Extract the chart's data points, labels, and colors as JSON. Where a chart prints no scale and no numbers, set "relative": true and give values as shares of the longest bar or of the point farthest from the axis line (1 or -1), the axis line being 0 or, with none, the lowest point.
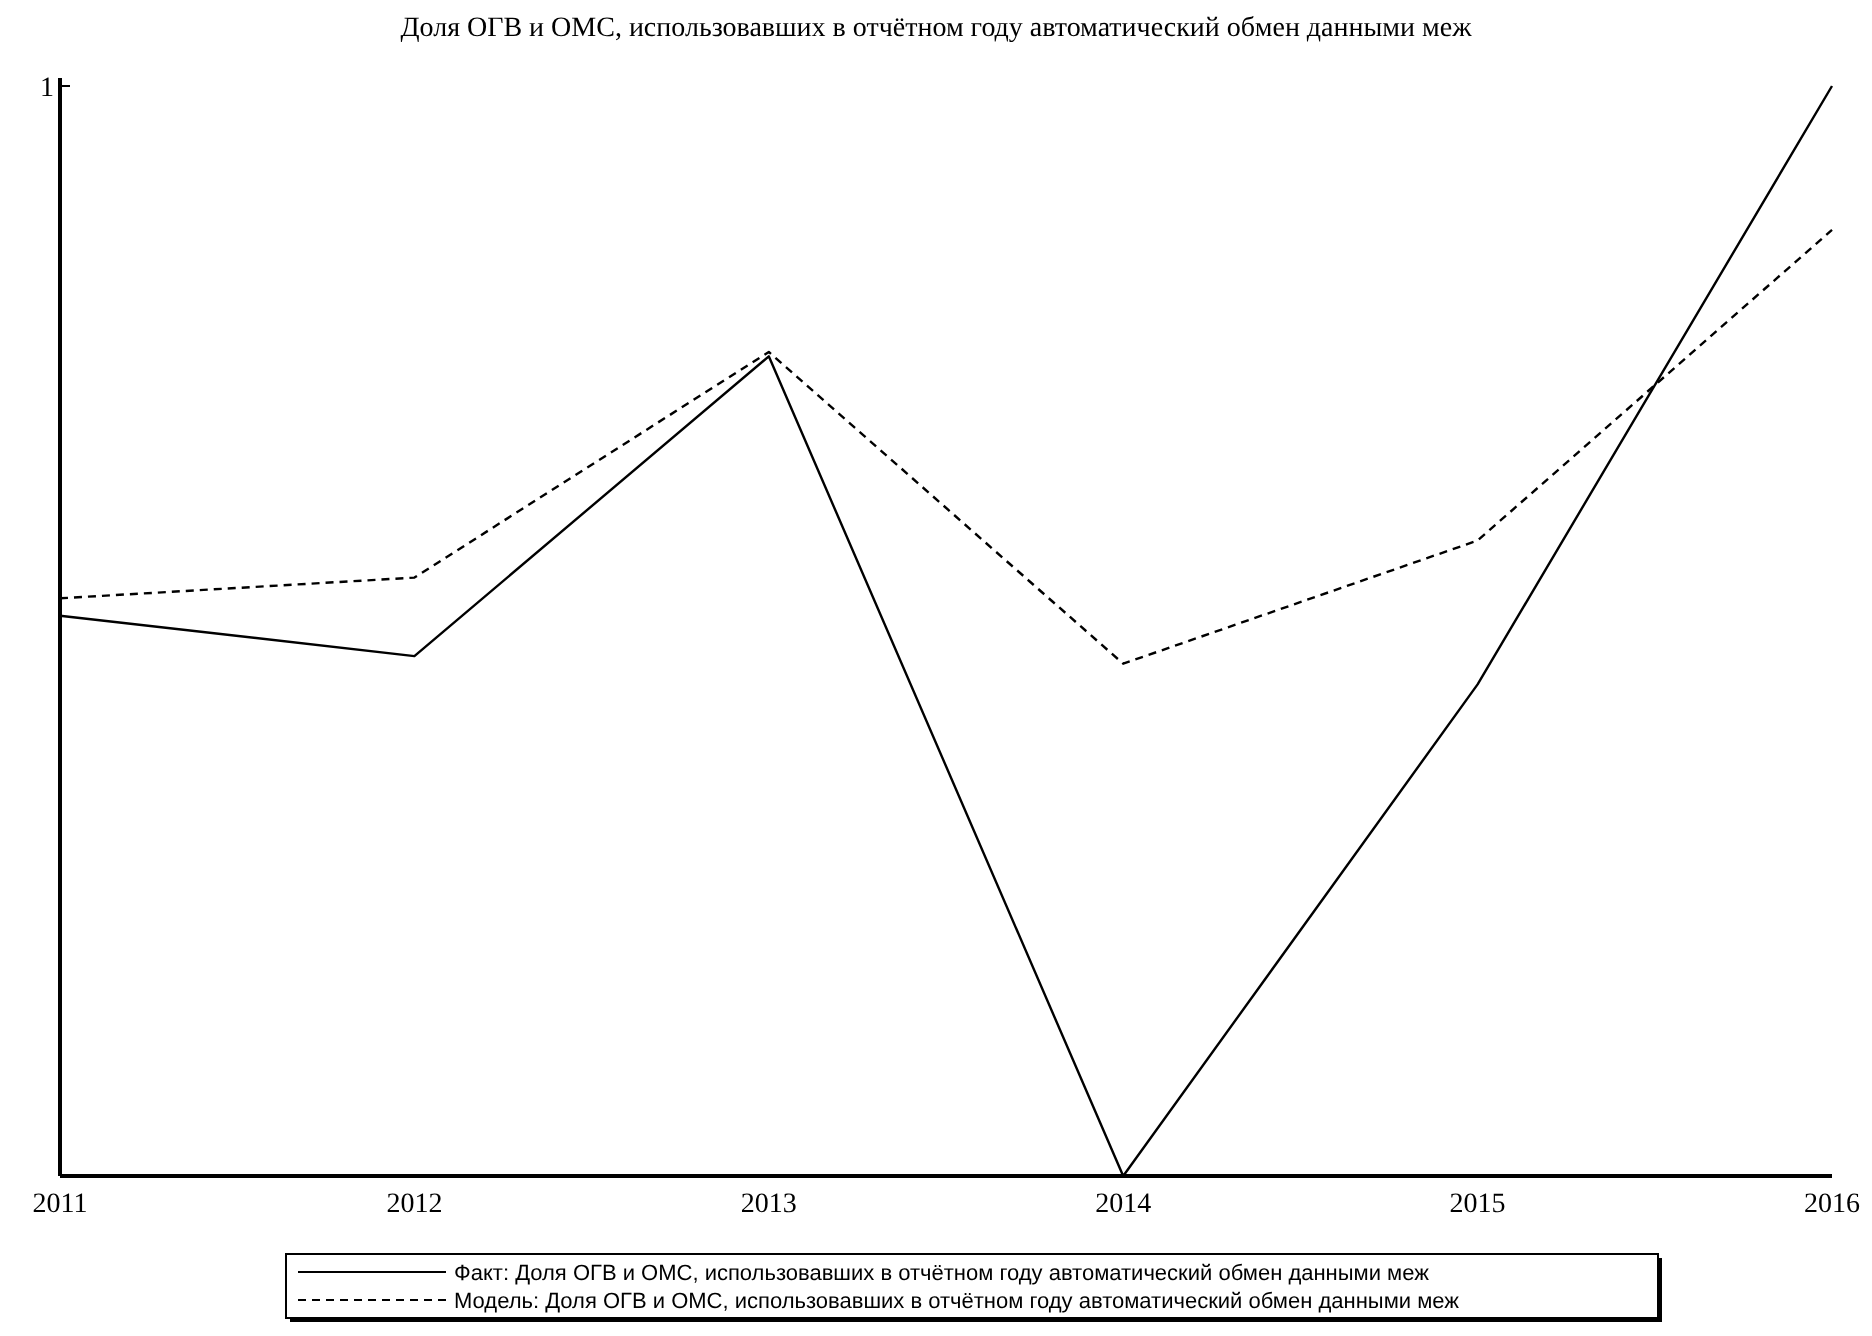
{
  "chart_data": {
    "type": "line",
    "title": "Доля ОГВ и ОМС, использовавших в отчётном году автоматический обмен данными меж",
    "x": [
      2011,
      2012,
      2013,
      2014,
      2015,
      2016
    ],
    "xlim": [
      2011,
      2016
    ],
    "xticks": [
      2011,
      2012,
      2013,
      2014,
      2015,
      2016
    ],
    "relative": true,
    "legend": "bottom",
    "annotations": [
      "1"
    ],
    "series": [
      {
        "name": "Факт:  Доля ОГВ и ОМС, использовавших в отчётном году автоматический обмен данными меж",
        "color": "#000000",
        "line_style": "solid",
        "values": [
          0.514,
          0.477,
          0.752,
          0,
          0.451,
          1
        ]
      },
      {
        "name": "Модель: Доля ОГВ и ОМС, использовавших в отчётном году автоматический обмен данными меж",
        "color": "#000000",
        "line_style": "dashed",
        "values": [
          0.53,
          0.549,
          0.756,
          0.47,
          0.583,
          0.868
        ]
      }
    ]
  }
}
